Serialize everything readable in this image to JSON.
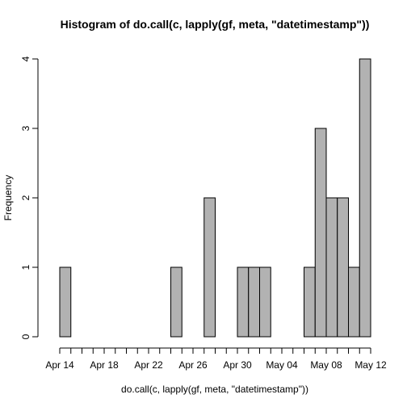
{
  "chart_data": {
    "type": "bar",
    "title": "Histogram of do.call(c, lapply(gf, meta, \"datetimestamp\"))",
    "xlabel": "do.call(c, lapply(gf, meta, \"datetimestamp\"))",
    "ylabel": "Frequency",
    "bin_width_days": 1,
    "x_start": "2014-04-14",
    "x_end": "2014-05-12",
    "bins": [
      {
        "start": "Apr 14",
        "count": 1
      },
      {
        "start": "Apr 15",
        "count": 0
      },
      {
        "start": "Apr 16",
        "count": 0
      },
      {
        "start": "Apr 17",
        "count": 0
      },
      {
        "start": "Apr 18",
        "count": 0
      },
      {
        "start": "Apr 19",
        "count": 0
      },
      {
        "start": "Apr 20",
        "count": 0
      },
      {
        "start": "Apr 21",
        "count": 0
      },
      {
        "start": "Apr 22",
        "count": 0
      },
      {
        "start": "Apr 23",
        "count": 0
      },
      {
        "start": "Apr 24",
        "count": 1
      },
      {
        "start": "Apr 25",
        "count": 0
      },
      {
        "start": "Apr 26",
        "count": 0
      },
      {
        "start": "Apr 27",
        "count": 2
      },
      {
        "start": "Apr 28",
        "count": 0
      },
      {
        "start": "Apr 29",
        "count": 0
      },
      {
        "start": "Apr 30",
        "count": 1
      },
      {
        "start": "May 01",
        "count": 1
      },
      {
        "start": "May 02",
        "count": 1
      },
      {
        "start": "May 03",
        "count": 0
      },
      {
        "start": "May 04",
        "count": 0
      },
      {
        "start": "May 05",
        "count": 0
      },
      {
        "start": "May 06",
        "count": 1
      },
      {
        "start": "May 07",
        "count": 3
      },
      {
        "start": "May 08",
        "count": 2
      },
      {
        "start": "May 09",
        "count": 2
      },
      {
        "start": "May 10",
        "count": 1
      },
      {
        "start": "May 11",
        "count": 4
      }
    ],
    "x_tick_labels": [
      "Apr 14",
      "Apr 18",
      "Apr 22",
      "Apr 26",
      "Apr 30",
      "May 04",
      "May 08",
      "May 12"
    ],
    "y_ticks": [
      0,
      1,
      2,
      3,
      4
    ],
    "ylim": [
      0,
      4
    ],
    "colors": {
      "bar_fill": "#b2b2b2",
      "bar_stroke": "#000000"
    },
    "grid": false
  }
}
